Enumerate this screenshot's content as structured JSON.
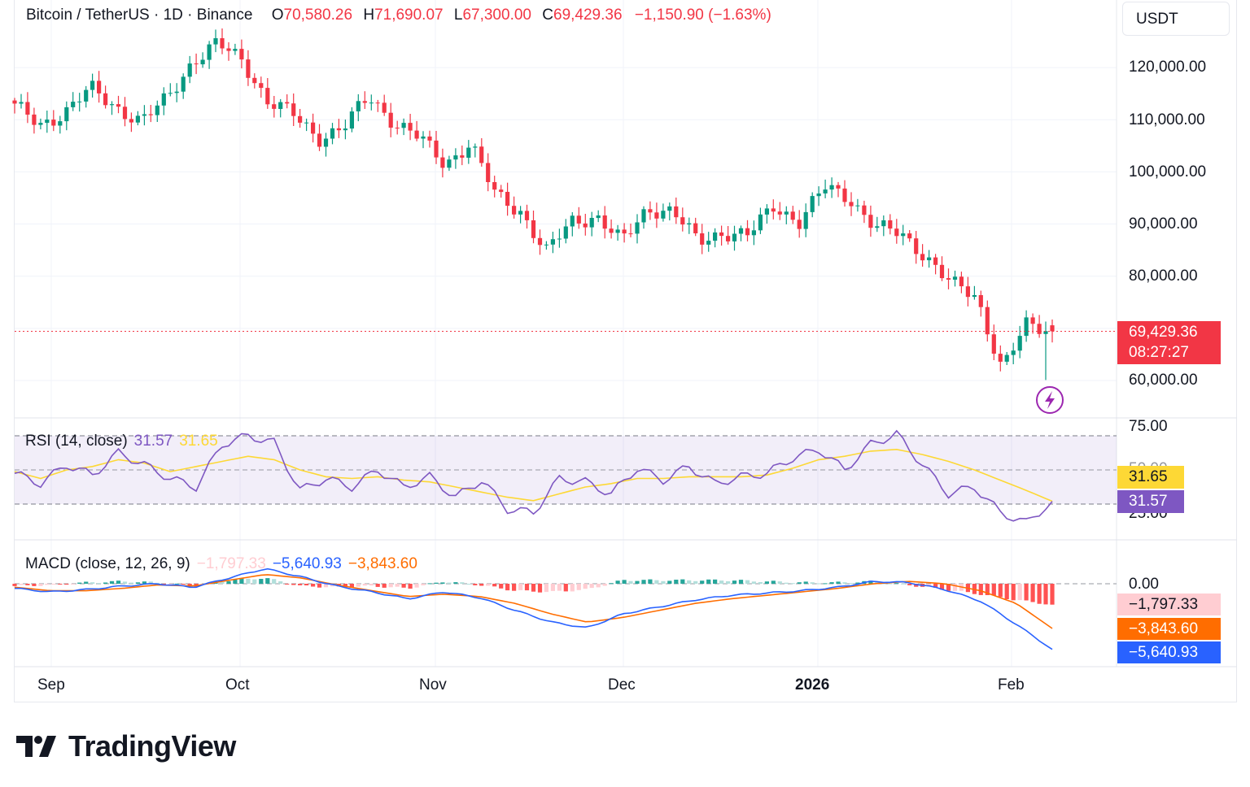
{
  "header": {
    "symbol": "Bitcoin / TetherUS · 1D · Binance",
    "o_label": "O",
    "o_value": "70,580.26",
    "h_label": "H",
    "h_value": "71,690.07",
    "l_label": "L",
    "l_value": "67,300.00",
    "c_label": "C",
    "c_value": "69,429.36",
    "change": "−1,150.90 (−1.63%)"
  },
  "unit_button": "USDT",
  "price_axis_labels": [
    "120,000.00",
    "110,000.00",
    "100,000.00",
    "90,000.00",
    "80,000.00",
    "60,000.00"
  ],
  "last_price": {
    "price": "69,429.36",
    "countdown": "08:27:27"
  },
  "rsi": {
    "title": "RSI (14, close)",
    "rsi_value": "31.57",
    "ma_value": "31.65",
    "axis_labels": [
      "75.00",
      "50.00",
      "25.00"
    ]
  },
  "macd": {
    "title": "MACD (close, 12, 26, 9)",
    "histogram_value": "−1,797.33",
    "macd_value": "−5,640.93",
    "signal_value": "−3,843.60",
    "axis_label": "0.00"
  },
  "time_axis": [
    "Sep",
    "Oct",
    "Nov",
    "Dec",
    "2026",
    "Feb"
  ],
  "brand": "TradingView",
  "colors": {
    "up": "#089981",
    "down": "#f23645",
    "rsi_line": "#7e57c2",
    "rsi_ma": "#fdd835",
    "macd_line": "#2962ff",
    "signal_line": "#ff6d00",
    "hist_up": "#26a69a",
    "hist_down": "#ff5252"
  },
  "icons": [
    "flash-icon",
    "tradingview-logo-icon"
  ],
  "chart_data": [
    {
      "type": "candlestick",
      "title": "Bitcoin / TetherUS · 1D · Binance",
      "x_ticks": [
        "Sep",
        "Oct",
        "Nov",
        "Dec",
        "2026",
        "Feb"
      ],
      "ylim": [
        56000,
        126000
      ],
      "y_ticks": [
        60000,
        80000,
        90000,
        100000,
        110000,
        120000
      ],
      "close_path": [
        [
          "Aug 28",
          112500
        ],
        [
          "Sep 1",
          109000
        ],
        [
          "Sep 8",
          111500
        ],
        [
          "Sep 15",
          116000
        ],
        [
          "Sep 22",
          112500
        ],
        [
          "Sep 26",
          109500
        ],
        [
          "Sep 30",
          114000
        ],
        [
          "Oct 3",
          121000
        ],
        [
          "Oct 6",
          124500
        ],
        [
          "Oct 9",
          121500
        ],
        [
          "Oct 10",
          113500
        ],
        [
          "Oct 14",
          111000
        ],
        [
          "Oct 17",
          106500
        ],
        [
          "Oct 21",
          108500
        ],
        [
          "Oct 27",
          114500
        ],
        [
          "Oct 31",
          109500
        ],
        [
          "Nov 3",
          106500
        ],
        [
          "Nov 4",
          101500
        ],
        [
          "Nov 10",
          105500
        ],
        [
          "Nov 14",
          95500
        ],
        [
          "Nov 18",
          92500
        ],
        [
          "Nov 21",
          84500
        ],
        [
          "Nov 26",
          90500
        ],
        [
          "Nov 30",
          91500
        ],
        [
          "Dec 1",
          86500
        ],
        [
          "Dec 4",
          93000
        ],
        [
          "Dec 10",
          92500
        ],
        [
          "Dec 15",
          86500
        ],
        [
          "Dec 22",
          88500
        ],
        [
          "Dec 31",
          87800
        ],
        [
          "Jan 5",
          93500
        ],
        [
          "Jan 9",
          90500
        ],
        [
          "Jan 14",
          97000
        ],
        [
          "Jan 18",
          95000
        ],
        [
          "Jan 21",
          89500
        ],
        [
          "Jan 26",
          88000
        ],
        [
          "Jan 29",
          84000
        ],
        [
          "Feb 1",
          78500
        ],
        [
          "Feb 3",
          76000
        ],
        [
          "Feb 5",
          62500
        ],
        [
          "Feb 6",
          70580
        ],
        [
          "Feb 7",
          69429
        ]
      ],
      "last": {
        "open": 70580.26,
        "high": 71690.07,
        "low": 67300.0,
        "close": 69429.36,
        "change": -1150.9,
        "change_pct": -1.63
      }
    },
    {
      "type": "line",
      "title": "RSI (14, close)",
      "ylim": [
        16,
        81
      ],
      "y_ticks": [
        25,
        50,
        75
      ],
      "band": [
        30,
        70
      ],
      "series": [
        {
          "name": "RSI",
          "last": 31.57,
          "path": [
            48,
            42,
            53,
            47,
            60,
            53,
            45,
            40,
            65,
            70,
            66,
            38,
            45,
            40,
            50,
            40,
            46,
            34,
            44,
            27,
            25,
            45,
            43,
            36,
            51,
            44,
            52,
            42,
            46,
            48,
            57,
            62,
            50,
            65,
            71,
            53,
            36,
            40,
            25,
            19,
            31.57
          ]
        },
        {
          "name": "RSI-based MA",
          "last": 31.65,
          "path": [
            49,
            45,
            50,
            52,
            56,
            54,
            49,
            52,
            55,
            58,
            56,
            50,
            46,
            45,
            46,
            44,
            43,
            40,
            37,
            34,
            32,
            36,
            40,
            42,
            45,
            45,
            46,
            46,
            46,
            47,
            51,
            56,
            58,
            61,
            62,
            59,
            55,
            50,
            44,
            38,
            31.65
          ]
        }
      ]
    },
    {
      "type": "line",
      "title": "MACD (close, 12, 26, 9)",
      "series": [
        {
          "name": "MACD",
          "last": -5640.93,
          "path": [
            -400,
            -700,
            -500,
            -200,
            0,
            -300,
            500,
            1300,
            600,
            -200,
            -700,
            -1300,
            -700,
            -1200,
            -2300,
            -3300,
            -3800,
            -2600,
            -2000,
            -1400,
            -1000,
            -800,
            -600,
            -300,
            200,
            100,
            -500,
            -1500,
            -3500,
            -5640.93
          ]
        },
        {
          "name": "Signal",
          "last": -3843.6,
          "path": [
            -300,
            -600,
            -600,
            -400,
            -100,
            -200,
            300,
            800,
            500,
            -100,
            -600,
            -1100,
            -900,
            -1100,
            -1700,
            -2600,
            -3300,
            -2900,
            -2300,
            -1700,
            -1300,
            -1000,
            -700,
            -400,
            0,
            200,
            0,
            -600,
            -1700,
            -3843.6
          ]
        },
        {
          "name": "Histogram",
          "last": -1797.33,
          "path": [
            -200,
            -100,
            100,
            200,
            100,
            -200,
            300,
            500,
            -200,
            -300,
            -200,
            -400,
            200,
            -100,
            -600,
            -700,
            -500,
            300,
            300,
            300,
            300,
            200,
            100,
            100,
            200,
            -100,
            -500,
            -900,
            -1400,
            -1797.33
          ]
        }
      ]
    }
  ]
}
